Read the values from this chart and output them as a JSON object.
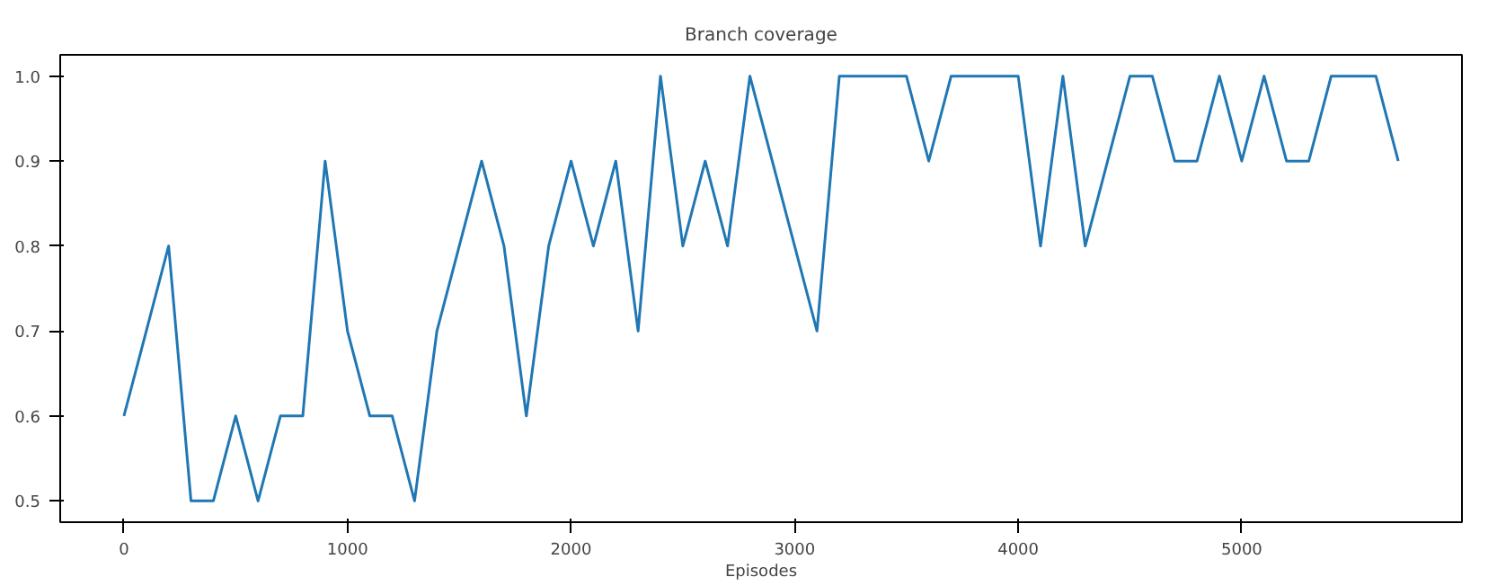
{
  "chart_data": {
    "type": "line",
    "title": "Branch coverage",
    "xlabel": "Episodes",
    "x": [
      0,
      100,
      200,
      300,
      400,
      500,
      600,
      700,
      800,
      900,
      1000,
      1100,
      1200,
      1300,
      1400,
      1500,
      1600,
      1700,
      1800,
      1900,
      2000,
      2100,
      2200,
      2300,
      2400,
      2500,
      2600,
      2700,
      2800,
      2900,
      3000,
      3100,
      3200,
      3300,
      3400,
      3500,
      3600,
      3700,
      3800,
      3900,
      4000,
      4100,
      4200,
      4300,
      4400,
      4500,
      4600,
      4700,
      4800,
      4900,
      5000,
      5100,
      5200,
      5300,
      5400,
      5500,
      5600,
      5700
    ],
    "series": [
      {
        "color": "#1f77b4",
        "values": [
          0.6,
          0.7,
          0.8,
          0.5,
          0.5,
          0.6,
          0.5,
          0.6,
          0.6,
          0.9,
          0.7,
          0.6,
          0.6,
          0.5,
          0.7,
          0.8,
          0.9,
          0.8,
          0.6,
          0.8,
          0.9,
          0.8,
          0.9,
          0.7,
          1.0,
          0.8,
          0.9,
          0.8,
          1.0,
          0.9,
          0.8,
          0.7,
          1.0,
          1.0,
          1.0,
          1.0,
          0.9,
          1.0,
          1.0,
          1.0,
          1.0,
          0.8,
          1.0,
          0.8,
          0.9,
          1.0,
          1.0,
          0.9,
          0.9,
          1.0,
          0.9,
          1.0,
          0.9,
          0.9,
          1.0,
          1.0,
          1.0,
          0.9
        ]
      }
    ],
    "xlim": [
      -285,
      5985
    ],
    "ylim": [
      0.475,
      1.025
    ],
    "xticks": [
      0,
      1000,
      2000,
      3000,
      4000,
      5000
    ],
    "yticks": [
      {
        "value": 0.5,
        "label": "0.5"
      },
      {
        "value": 0.6,
        "label": "0.6"
      },
      {
        "value": 0.7,
        "label": "0.7"
      },
      {
        "value": 0.8,
        "label": "0.8"
      },
      {
        "value": 0.9,
        "label": "0.9"
      },
      {
        "value": 1.0,
        "label": "1.0"
      }
    ],
    "grid": false
  }
}
